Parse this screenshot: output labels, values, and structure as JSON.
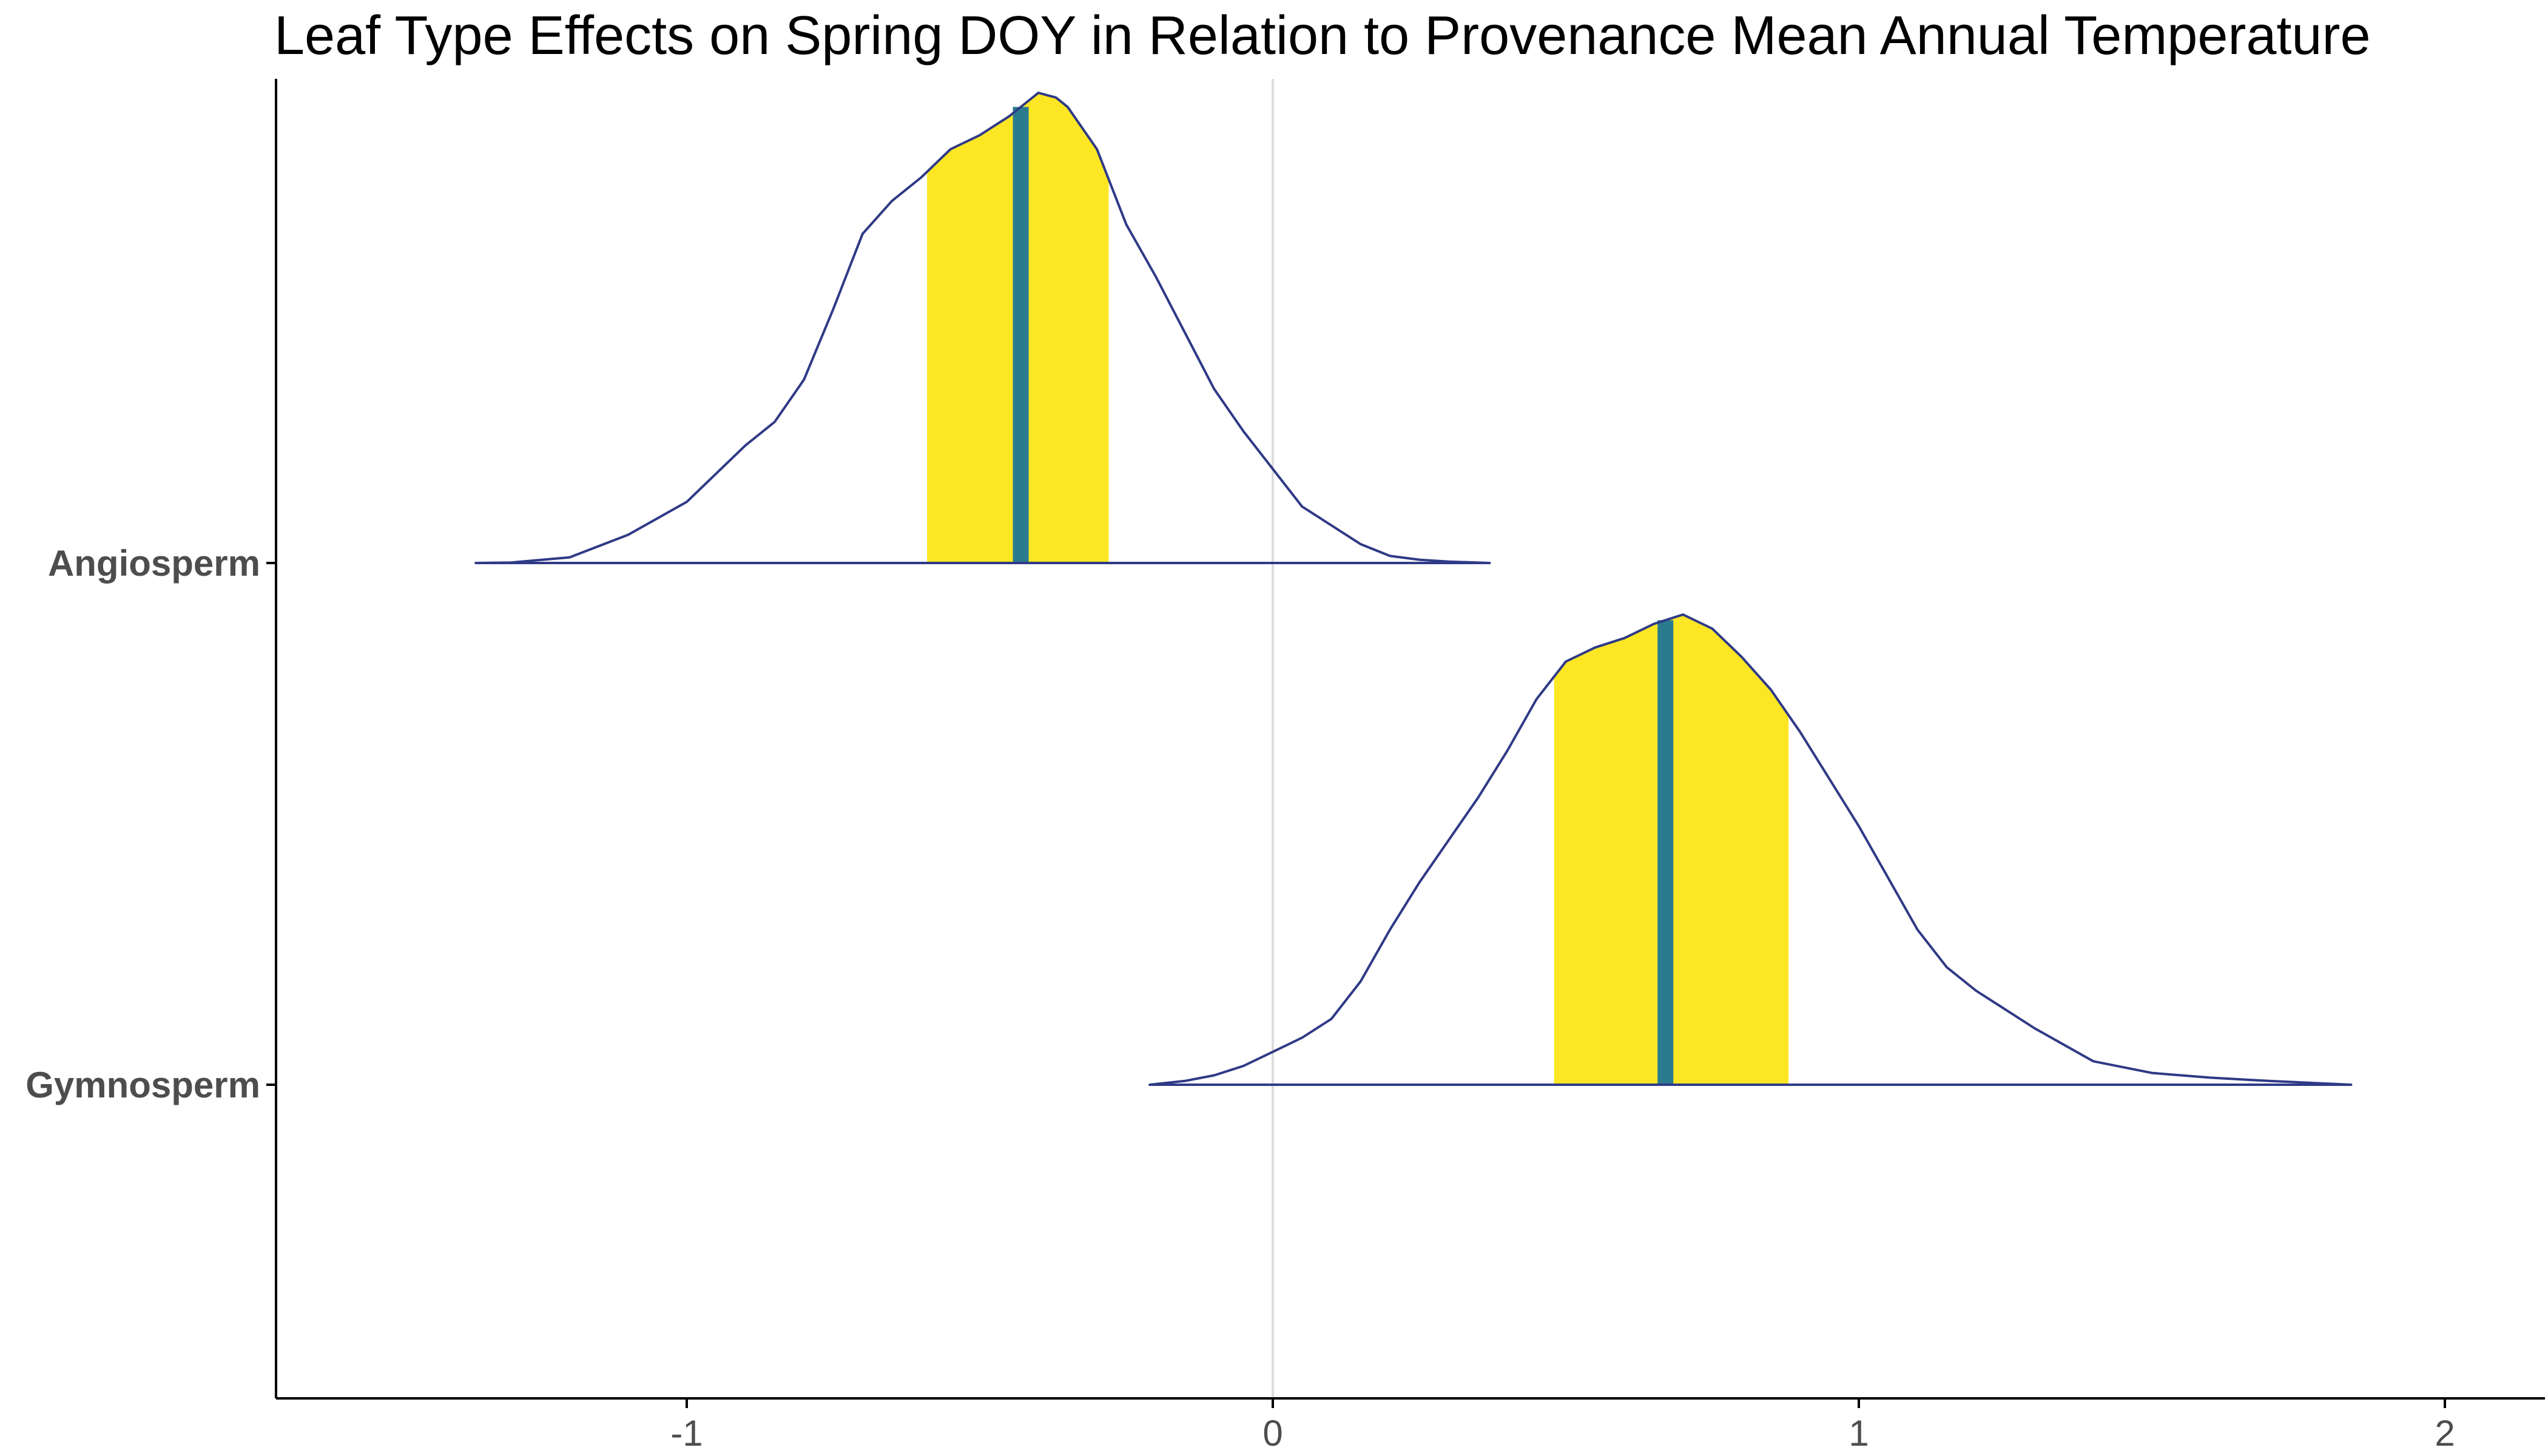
{
  "chart_data": {
    "type": "density",
    "title": "Leaf Type Effects on Spring DOY in Relation to Provenance Mean Annual Temperature",
    "xlabel": "",
    "ylabel": "",
    "xlim": [
      -1.7,
      2.17
    ],
    "x_ticks": [
      -1,
      0,
      1,
      2
    ],
    "x_tick_labels": [
      "-1",
      "0",
      "1",
      "2"
    ],
    "zero_reference_line": true,
    "grid": false,
    "legend": "none",
    "categories": [
      "Angiosperm",
      "Gymnosperm"
    ],
    "series": [
      {
        "name": "Angiosperm",
        "x": [
          -1.36,
          -1.3,
          -1.2,
          -1.1,
          -1.0,
          -0.95,
          -0.9,
          -0.85,
          -0.8,
          -0.75,
          -0.7,
          -0.65,
          -0.6,
          -0.55,
          -0.5,
          -0.45,
          -0.42,
          -0.4,
          -0.37,
          -0.35,
          -0.3,
          -0.25,
          -0.2,
          -0.15,
          -0.1,
          -0.05,
          0.0,
          0.05,
          0.1,
          0.15,
          0.2,
          0.25,
          0.3,
          0.37
        ],
        "density": [
          0.0,
          0.001,
          0.012,
          0.06,
          0.13,
          0.19,
          0.25,
          0.3,
          0.39,
          0.54,
          0.7,
          0.77,
          0.82,
          0.88,
          0.91,
          0.95,
          0.98,
          1.0,
          0.99,
          0.97,
          0.88,
          0.72,
          0.61,
          0.49,
          0.37,
          0.28,
          0.2,
          0.12,
          0.08,
          0.04,
          0.015,
          0.007,
          0.003,
          0.0
        ],
        "interval": [
          -0.59,
          -0.28
        ],
        "median": -0.43
      },
      {
        "name": "Gymnosperm",
        "x": [
          -0.21,
          -0.15,
          -0.1,
          -0.05,
          0.0,
          0.05,
          0.1,
          0.15,
          0.2,
          0.25,
          0.3,
          0.35,
          0.4,
          0.45,
          0.5,
          0.55,
          0.6,
          0.65,
          0.7,
          0.75,
          0.8,
          0.85,
          0.9,
          0.95,
          1.0,
          1.05,
          1.1,
          1.15,
          1.2,
          1.3,
          1.4,
          1.5,
          1.6,
          1.7,
          1.84
        ],
        "density": [
          0.0,
          0.008,
          0.02,
          0.04,
          0.07,
          0.1,
          0.14,
          0.22,
          0.33,
          0.43,
          0.52,
          0.61,
          0.71,
          0.82,
          0.9,
          0.93,
          0.95,
          0.98,
          1.0,
          0.97,
          0.91,
          0.84,
          0.75,
          0.65,
          0.55,
          0.44,
          0.33,
          0.25,
          0.2,
          0.12,
          0.05,
          0.025,
          0.015,
          0.008,
          0.0
        ],
        "interval": [
          0.48,
          0.88
        ],
        "median": 0.67
      }
    ]
  },
  "colors": {
    "outline": "#2f3a86",
    "interval_fill": "#fde725",
    "median": "#2a7b8e",
    "zero_line": "#dcdcdc",
    "axis": "#000000",
    "tick_label": "#4d4d4d",
    "title": "#000000"
  }
}
